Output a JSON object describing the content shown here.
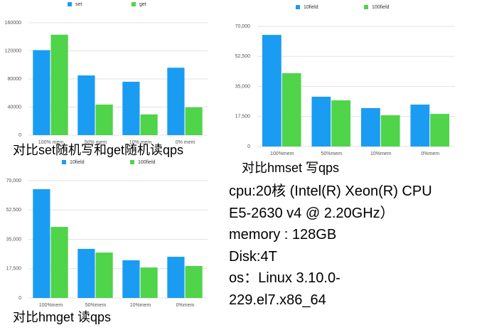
{
  "chart_data": [
    {
      "type": "bar",
      "caption": "对比set随机写和get随机读qps",
      "categories": [
        "100% mem",
        "50% mem",
        "10% mem",
        "0% mem"
      ],
      "series": [
        {
          "name": "set",
          "color": "#1a9cf2",
          "values": [
            121000,
            85000,
            76000,
            96000
          ]
        },
        {
          "name": "get",
          "color": "#4fd44a",
          "values": [
            143000,
            43500,
            29500,
            39500
          ]
        }
      ],
      "ylim": [
        0,
        160000
      ],
      "yticks": [
        0,
        40000,
        80000,
        120000,
        160000
      ],
      "grid": true
    },
    {
      "type": "bar",
      "caption": "对比hmset 写qps",
      "categories": [
        "100%mem",
        "50%mem",
        "10%mem",
        "0%mem"
      ],
      "series": [
        {
          "name": "10field",
          "color": "#1a9cf2",
          "values": [
            65000,
            29000,
            22400,
            24400
          ]
        },
        {
          "name": "100field",
          "color": "#4fd44a",
          "values": [
            42700,
            26900,
            18200,
            19000
          ]
        }
      ],
      "ylim": [
        0,
        70000
      ],
      "yticks": [
        0,
        {
          "value": 17500,
          "label": "17,500"
        },
        {
          "value": 35000,
          "label": "35,000"
        },
        {
          "value": 52500,
          "label": "52,500"
        },
        {
          "value": 70000,
          "label": "70,000"
        }
      ],
      "grid": true
    },
    {
      "type": "bar",
      "caption": "对比hmget 读qps",
      "categories": [
        "100%mem",
        "50%mem",
        "10%mem",
        "0%mem"
      ],
      "series": [
        {
          "name": "10field",
          "color": "#1a9cf2",
          "values": [
            64900,
            29300,
            22500,
            24600
          ]
        },
        {
          "name": "100field",
          "color": "#4fd44a",
          "values": [
            42400,
            27100,
            18200,
            19100
          ]
        }
      ],
      "ylim": [
        0,
        70000
      ],
      "yticks": [
        0,
        {
          "value": 17500,
          "label": "17,500"
        },
        {
          "value": 35000,
          "label": "35,000"
        },
        {
          "value": 52500,
          "label": "52,500"
        },
        {
          "value": 70000,
          "label": "70,000"
        }
      ],
      "grid": true
    }
  ],
  "specs": [
    "cpu:20核 (Intel(R) Xeon(R) CPU",
    "E5-2630 v4 @ 2.20GHz）",
    "memory : 128GB",
    "Disk:4T",
    "os：Linux 3.10.0-",
    "229.el7.x86_64"
  ]
}
